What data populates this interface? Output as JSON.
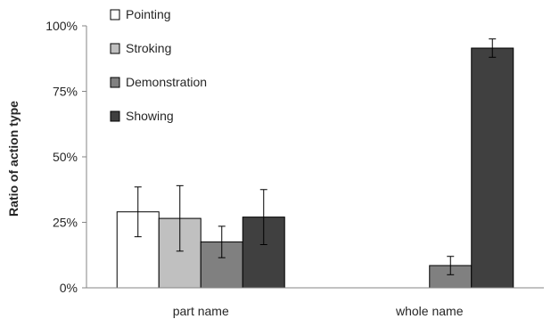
{
  "chart_data": {
    "type": "bar",
    "categories": [
      "part name",
      "whole name"
    ],
    "series": [
      {
        "name": "Pointing",
        "values": [
          29,
          0
        ],
        "errors": [
          9.5,
          0
        ],
        "color": "#ffffff"
      },
      {
        "name": "Stroking",
        "values": [
          26.5,
          0
        ],
        "errors": [
          12.5,
          0
        ],
        "color": "#c0c0c0"
      },
      {
        "name": "Demonstration",
        "values": [
          17.5,
          8.5
        ],
        "errors": [
          6,
          3.5
        ],
        "color": "#808080"
      },
      {
        "name": "Showing",
        "values": [
          27,
          91.5
        ],
        "errors": [
          10.5,
          3.5
        ],
        "color": "#404040"
      }
    ],
    "ylabel": "Ratio of action type",
    "ylim": [
      0,
      100
    ],
    "yticks": [
      "0%",
      "25%",
      "50%",
      "75%",
      "100%"
    ],
    "legend_position": "top-left",
    "grid": false
  }
}
